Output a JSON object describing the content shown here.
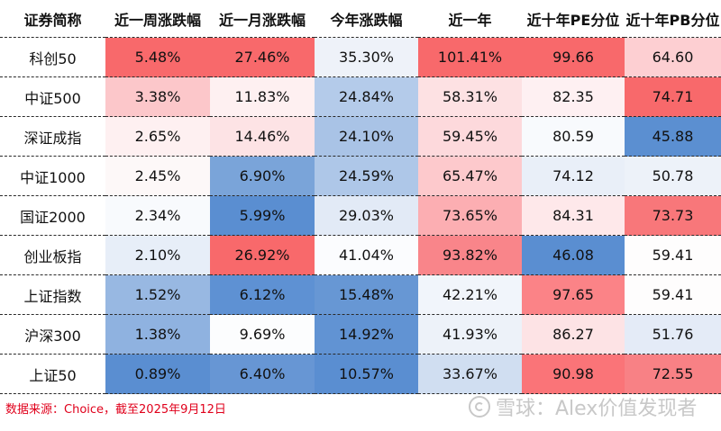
{
  "chart_data": {
    "type": "heatmap",
    "columns": [
      "证券简称",
      "近一周涨跌幅",
      "近一月涨跌幅",
      "今年涨跌幅",
      "近一年",
      "近十年PE分位",
      "近十年PB分位"
    ],
    "rows": [
      {
        "name": "科创50",
        "values": [
          "5.48%",
          "27.46%",
          "35.30%",
          "101.41%",
          "99.66",
          "64.60"
        ]
      },
      {
        "name": "中证500",
        "values": [
          "3.38%",
          "11.83%",
          "24.84%",
          "58.31%",
          "82.35",
          "74.71"
        ]
      },
      {
        "name": "深证成指",
        "values": [
          "2.65%",
          "14.46%",
          "24.10%",
          "59.45%",
          "80.59",
          "45.88"
        ]
      },
      {
        "name": "中证1000",
        "values": [
          "2.45%",
          "6.90%",
          "24.59%",
          "65.47%",
          "74.12",
          "50.78"
        ]
      },
      {
        "name": "国证2000",
        "values": [
          "2.34%",
          "5.99%",
          "29.03%",
          "73.65%",
          "84.31",
          "73.73"
        ]
      },
      {
        "name": "创业板指",
        "values": [
          "2.10%",
          "26.92%",
          "41.04%",
          "93.82%",
          "46.08",
          "59.41"
        ]
      },
      {
        "name": "上证指数",
        "values": [
          "1.52%",
          "6.12%",
          "15.48%",
          "42.21%",
          "97.65",
          "59.41"
        ]
      },
      {
        "name": "沪深300",
        "values": [
          "1.38%",
          "9.69%",
          "14.92%",
          "41.93%",
          "86.27",
          "51.76"
        ]
      },
      {
        "name": "上证50",
        "values": [
          "0.89%",
          "6.40%",
          "10.57%",
          "33.67%",
          "90.98",
          "72.55"
        ]
      }
    ],
    "cell_colors": [
      [
        "#f8696b",
        "#f8696b",
        "#eef2f9",
        "#f8696b",
        "#f8696b",
        "#fdcfd2"
      ],
      [
        "#fcc7ca",
        "#fef0f1",
        "#b4cbea",
        "#fde1e3",
        "#fef0f2",
        "#f8696b"
      ],
      [
        "#fef0f1",
        "#fde3e5",
        "#a9c3e6",
        "#fdd9dc",
        "#f8fafd",
        "#5b8fd1"
      ],
      [
        "#fdf8f8",
        "#7aa4d9",
        "#aec7e8",
        "#fdc9cc",
        "#e9eff8",
        "#edf2f9"
      ],
      [
        "#f8fafd",
        "#5a8ed1",
        "#e2eaf6",
        "#fcaeb2",
        "#fee8ea",
        "#f8777a"
      ],
      [
        "#e7eef8",
        "#f8696b",
        "#fbfcfe",
        "#f9858a",
        "#5a8ed1",
        "#fefdfd"
      ],
      [
        "#98b8e2",
        "#5e91d3",
        "#6797d4",
        "#f1f5fb",
        "#fb8387",
        "#fefdfd"
      ],
      [
        "#8fb2e0",
        "#fcfdfe",
        "#6193d3",
        "#edf2f9",
        "#fde3e5",
        "#e4ebf7"
      ],
      [
        "#5a8ed1",
        "#6796d4",
        "#5a8ed1",
        "#d0def1",
        "#fa7478",
        "#f88185"
      ]
    ]
  },
  "footer": {
    "source": "数据来源：Choice，截至2025年9月12日"
  },
  "watermark": {
    "text": "雪球：Alex价值发现者",
    "icon": "snowball-icon"
  }
}
